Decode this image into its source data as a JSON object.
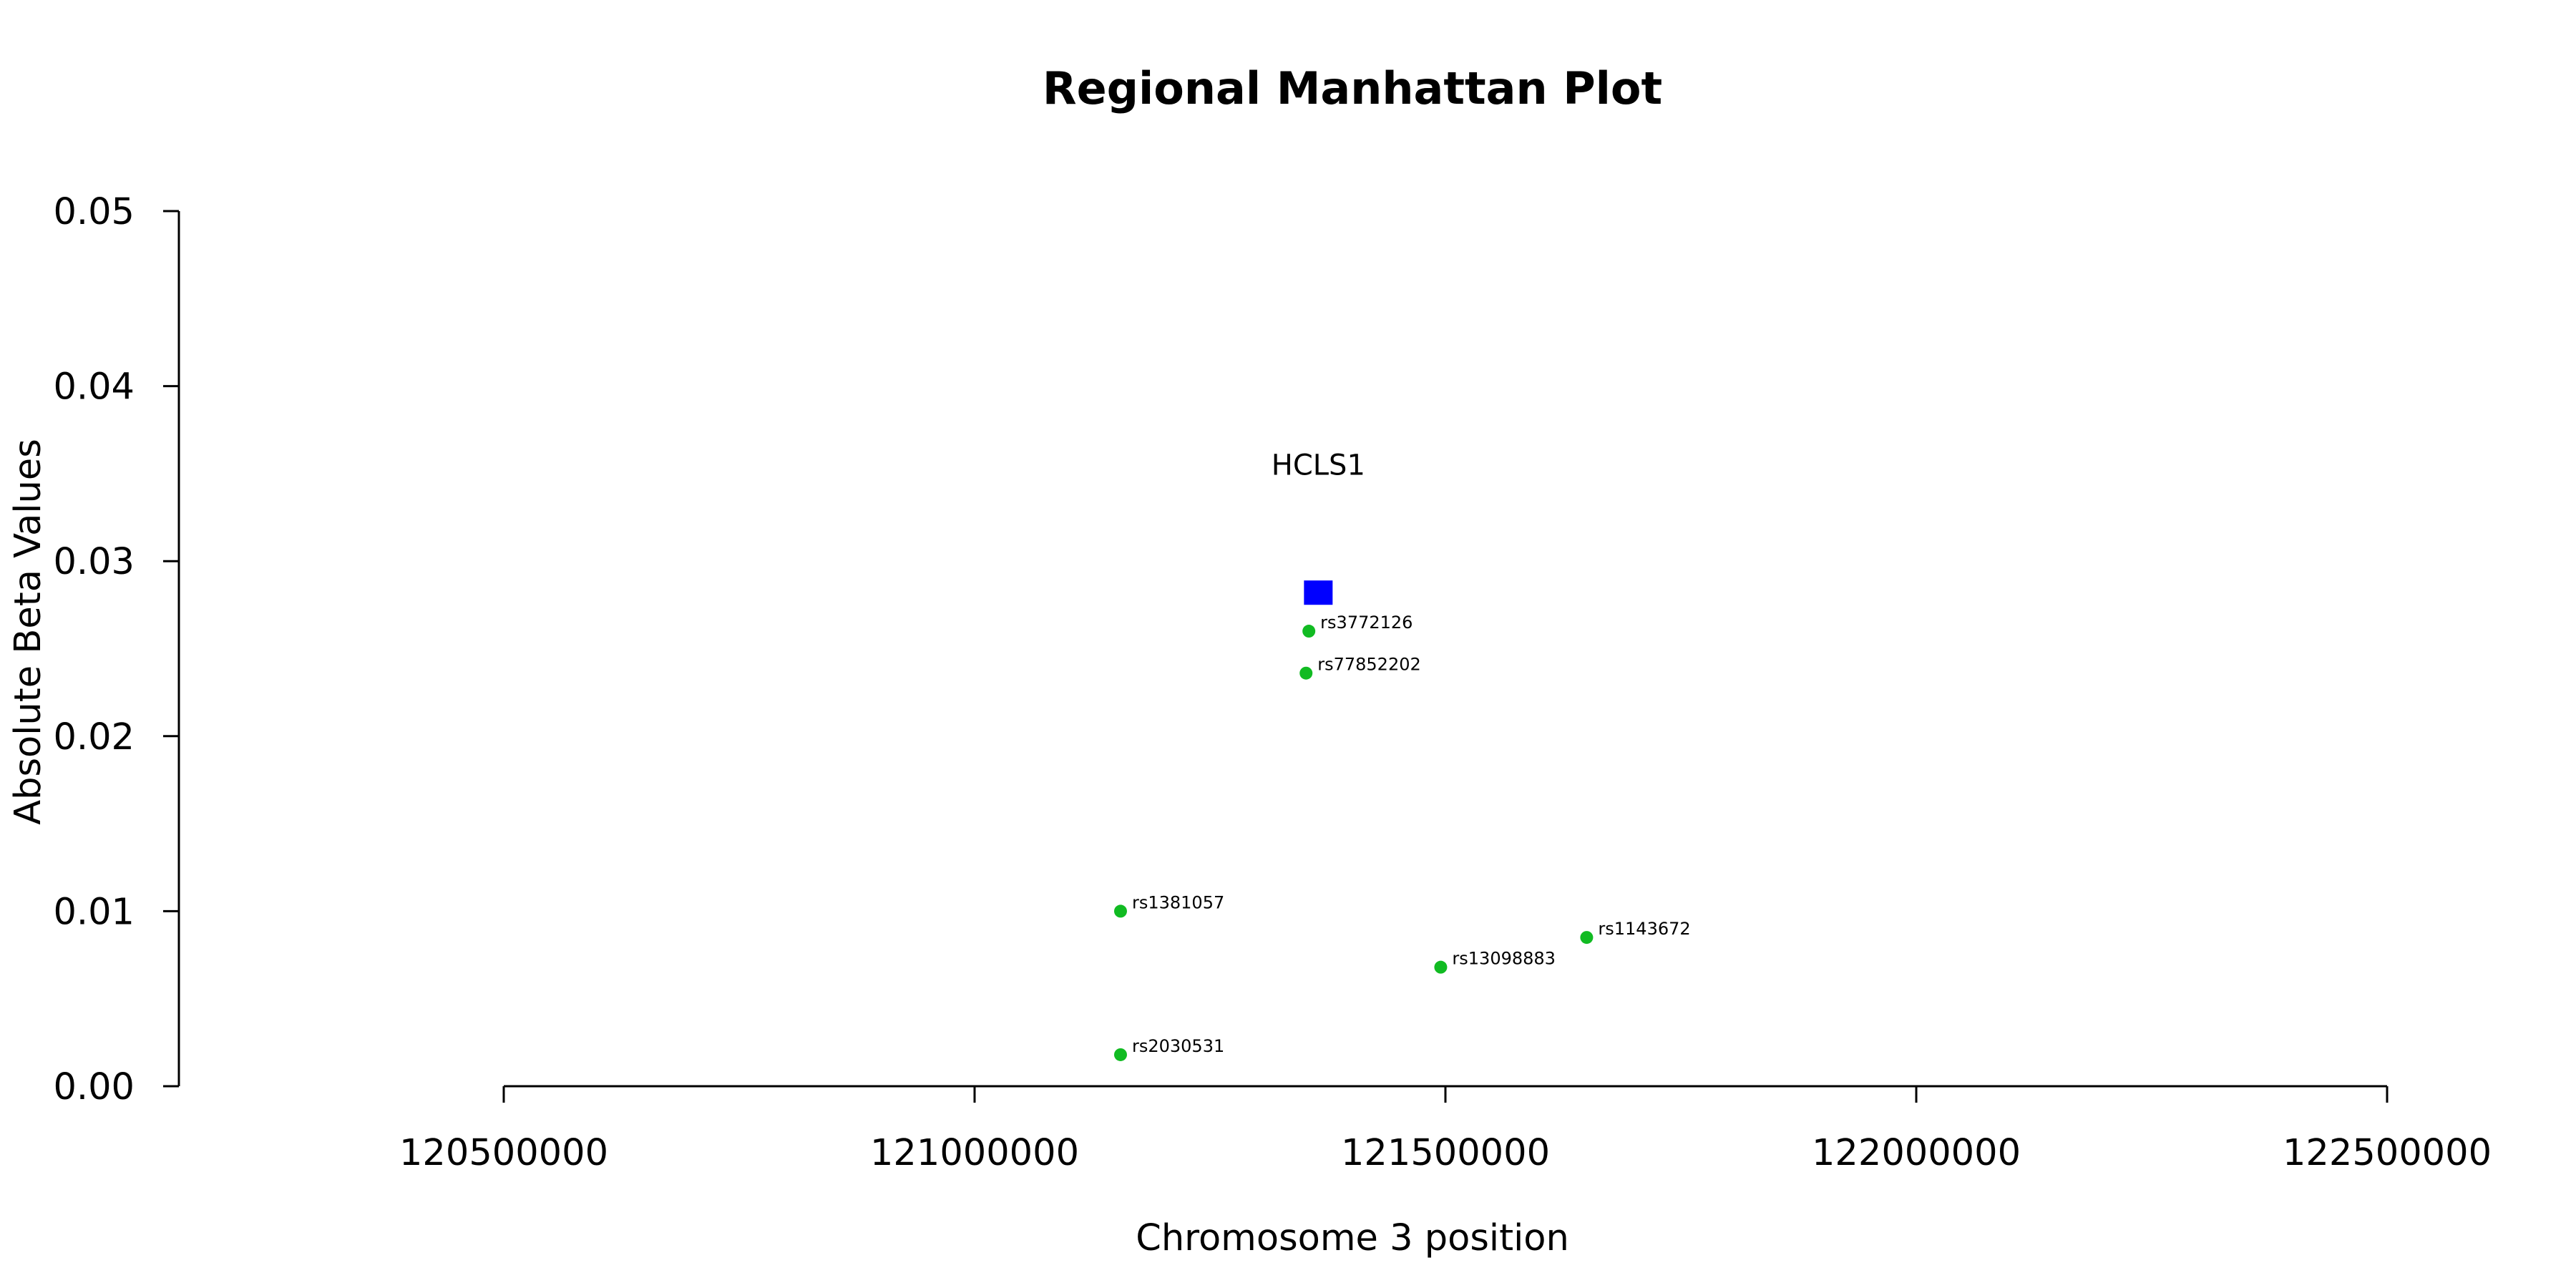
{
  "chart_data": {
    "type": "scatter",
    "title": "Regional Manhattan Plot",
    "xlabel": "Chromosome 3 position",
    "ylabel": "Absolute Beta Values",
    "xlim": [
      120500000,
      122500000
    ],
    "ylim": [
      0.0,
      0.05
    ],
    "x_ticks": [
      "120500000",
      "121000000",
      "121500000",
      "122000000",
      "122500000"
    ],
    "y_ticks": [
      "0.00",
      "0.01",
      "0.02",
      "0.03",
      "0.04",
      "0.05"
    ],
    "grid": false,
    "gene": {
      "name": "HCLS1",
      "x": 121365000,
      "y": 0.0282,
      "label_y": 0.0355,
      "color": "#0000ff",
      "marker": "square"
    },
    "series": [
      {
        "color": "#11bb22",
        "marker": "circle",
        "points": [
          {
            "label": "rs3772126",
            "x": 121355000,
            "y": 0.026
          },
          {
            "label": "rs77852202",
            "x": 121352000,
            "y": 0.0236
          },
          {
            "label": "rs1381057",
            "x": 121155000,
            "y": 0.01
          },
          {
            "label": "rs1143672",
            "x": 121650000,
            "y": 0.0085
          },
          {
            "label": "rs13098883",
            "x": 121495000,
            "y": 0.0068
          },
          {
            "label": "rs2030531",
            "x": 121155000,
            "y": 0.0018
          }
        ]
      }
    ]
  }
}
